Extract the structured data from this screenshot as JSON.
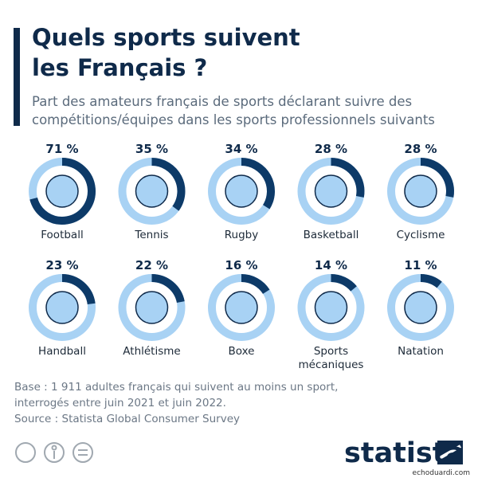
{
  "title_lines": [
    "Quels sports suivent",
    "les Français ?"
  ],
  "subtitle_lines": [
    "Part des amateurs français de sports déclarant suivre des",
    "compétitions/équipes dans les sports professionnels suivants"
  ],
  "chart_data": {
    "type": "donut",
    "categories": [
      "Football",
      "Tennis",
      "Rugby",
      "Basketball",
      "Cyclisme",
      "Handball",
      "Athlétisme",
      "Boxe",
      "Sports mécaniques",
      "Natation"
    ],
    "values": [
      71,
      35,
      34,
      28,
      28,
      23,
      22,
      16,
      14,
      11
    ],
    "value_labels": [
      "71 %",
      "35 %",
      "34 %",
      "28 %",
      "28 %",
      "23 %",
      "22 %",
      "16 %",
      "14 %",
      "11 %"
    ],
    "color": "#0d3a68",
    "track_color": "#a8d2f4"
  },
  "note_lines": [
    "Base : 1 911 adultes français qui suivent au moins un sport,",
    "interrogés entre juin 2021 et juin 2022."
  ],
  "source": "Source : Statista Global Consumer Survey",
  "brand": "statista",
  "watermark": "echoduardi.com"
}
